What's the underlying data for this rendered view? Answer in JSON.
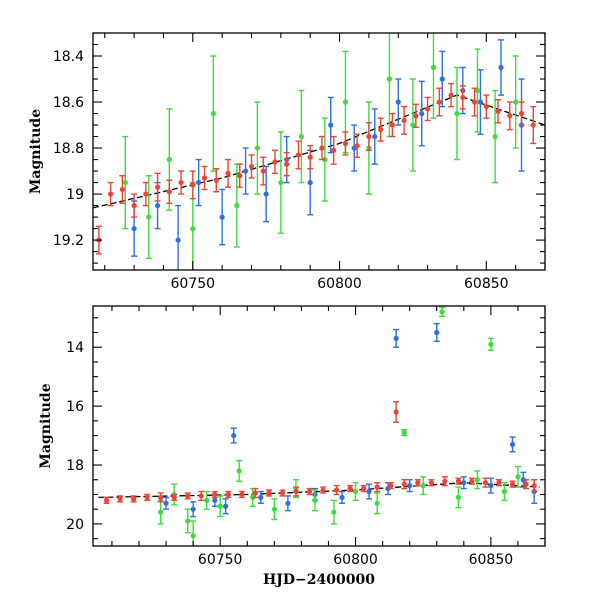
{
  "chart_data": [
    {
      "type": "scatter",
      "panel": "top",
      "title": "",
      "xlabel": "",
      "ylabel": "Magnitude",
      "xlim": [
        60716,
        60870
      ],
      "ylim": [
        19.33,
        18.3
      ],
      "y_inverted": true,
      "xticks": [
        60750,
        60800,
        60850
      ],
      "yticks": [
        18.4,
        18.6,
        18.8,
        19,
        19.2
      ],
      "ytick_labels": [
        "18.4",
        "18.6",
        "18.8",
        "19",
        "19.2"
      ],
      "grid": false,
      "legend": "none",
      "trend": {
        "x": [
          60716,
          60760,
          60800,
          60840,
          60870
        ],
        "y": [
          19.06,
          18.93,
          18.78,
          18.57,
          18.7
        ]
      },
      "series": [
        {
          "color": "#2f6fe4",
          "x": [
            60730,
            60738,
            60745,
            60752,
            60760,
            60768,
            60775,
            60782,
            60790,
            60797,
            60805,
            60812,
            60820,
            60828,
            60835,
            60842,
            60848,
            60855,
            60862
          ],
          "y": [
            19.15,
            19.05,
            19.2,
            18.95,
            19.1,
            18.9,
            19.0,
            18.85,
            18.95,
            18.7,
            18.8,
            18.75,
            18.6,
            18.65,
            18.5,
            18.55,
            18.6,
            18.45,
            18.7
          ],
          "err": [
            0.12,
            0.1,
            0.15,
            0.1,
            0.12,
            0.1,
            0.12,
            0.1,
            0.14,
            0.12,
            0.1,
            0.12,
            0.1,
            0.14,
            0.12,
            0.1,
            0.14,
            0.12,
            0.2
          ]
        },
        {
          "color": "#3cdd3c",
          "x": [
            60727,
            60735,
            60742,
            60750,
            60757,
            60765,
            60772,
            60780,
            60787,
            60795,
            60802,
            60810,
            60817,
            60825,
            60832,
            60840,
            60847,
            60853,
            60860
          ],
          "y": [
            18.95,
            19.1,
            18.85,
            19.15,
            18.65,
            19.05,
            18.8,
            18.95,
            18.75,
            18.85,
            18.6,
            18.8,
            18.5,
            18.7,
            18.45,
            18.65,
            18.55,
            18.75,
            18.6
          ],
          "err": [
            0.2,
            0.18,
            0.22,
            0.2,
            0.25,
            0.18,
            0.2,
            0.22,
            0.2,
            0.18,
            0.22,
            0.2,
            0.25,
            0.2,
            0.22,
            0.2,
            0.18,
            0.2,
            0.2
          ]
        },
        {
          "color": "#ee4433",
          "x": [
            60718,
            60722,
            60726,
            60730,
            60734,
            60738,
            60742,
            60746,
            60750,
            60754,
            60758,
            60762,
            60766,
            60770,
            60774,
            60778,
            60782,
            60786,
            60790,
            60794,
            60798,
            60802,
            60806,
            60810,
            60814,
            60818,
            60822,
            60826,
            60830,
            60834,
            60838,
            60842,
            60846,
            60850,
            60854,
            60858,
            60862,
            60866
          ],
          "y": [
            19.2,
            19.0,
            18.98,
            19.05,
            19.0,
            18.97,
            18.99,
            18.95,
            18.96,
            18.93,
            18.94,
            18.91,
            18.92,
            18.88,
            18.9,
            18.86,
            18.87,
            18.83,
            18.84,
            18.8,
            18.81,
            18.78,
            18.79,
            18.75,
            18.72,
            18.7,
            18.68,
            18.66,
            18.63,
            18.6,
            18.57,
            18.58,
            18.6,
            18.62,
            18.64,
            18.66,
            18.65,
            18.7
          ],
          "err": [
            0.06,
            0.05,
            0.06,
            0.05,
            0.05,
            0.06,
            0.05,
            0.05,
            0.06,
            0.05,
            0.05,
            0.06,
            0.05,
            0.05,
            0.06,
            0.05,
            0.05,
            0.06,
            0.05,
            0.05,
            0.06,
            0.05,
            0.05,
            0.06,
            0.05,
            0.05,
            0.06,
            0.05,
            0.05,
            0.06,
            0.05,
            0.05,
            0.06,
            0.05,
            0.05,
            0.06,
            0.05,
            0.08
          ]
        }
      ]
    },
    {
      "type": "scatter",
      "panel": "bottom",
      "title": "",
      "xlabel": "HJD−2400000",
      "ylabel": "Magnitude",
      "xlim": [
        60703,
        60870
      ],
      "ylim": [
        20.75,
        12.6
      ],
      "y_inverted": true,
      "xticks": [
        60750,
        60800,
        60850
      ],
      "yticks": [
        14,
        16,
        18,
        20
      ],
      "ytick_labels": [
        "14",
        "16",
        "18",
        "20"
      ],
      "grid": false,
      "legend": "none",
      "trend": {
        "x": [
          60705,
          60760,
          60800,
          60840,
          60868
        ],
        "y": [
          19.1,
          19.0,
          18.85,
          18.6,
          18.75
        ]
      },
      "series": [
        {
          "color": "#2f6fe4",
          "x": [
            60730,
            60740,
            60748,
            60752,
            60755,
            60765,
            60775,
            60785,
            60795,
            60805,
            60812,
            60815,
            60820,
            60830,
            60840,
            60850,
            60858,
            60862,
            60866
          ],
          "y": [
            19.3,
            19.5,
            19.2,
            19.4,
            17.0,
            19.1,
            19.3,
            19.0,
            19.1,
            18.9,
            18.8,
            13.7,
            18.7,
            13.5,
            18.6,
            18.7,
            17.3,
            18.5,
            18.9
          ],
          "err": [
            0.2,
            0.25,
            0.2,
            0.25,
            0.25,
            0.2,
            0.25,
            0.2,
            0.2,
            0.25,
            0.2,
            0.3,
            0.2,
            0.3,
            0.2,
            0.25,
            0.25,
            0.25,
            0.4
          ]
        },
        {
          "color": "#3cdd3c",
          "x": [
            60728,
            60733,
            60738,
            60740,
            60745,
            60750,
            60757,
            60762,
            60770,
            60778,
            60785,
            60792,
            60800,
            60808,
            60818,
            60825,
            60832,
            60838,
            60845,
            60850,
            60855,
            60860
          ],
          "y": [
            19.6,
            19.0,
            19.9,
            20.4,
            19.2,
            19.4,
            18.2,
            19.1,
            19.5,
            18.8,
            19.2,
            19.6,
            18.9,
            19.3,
            16.9,
            18.7,
            12.8,
            19.1,
            18.5,
            13.9,
            18.9,
            18.4
          ],
          "err": [
            0.4,
            0.35,
            0.4,
            0.5,
            0.3,
            0.35,
            0.35,
            0.3,
            0.35,
            0.3,
            0.35,
            0.4,
            0.3,
            0.35,
            0.1,
            0.3,
            0.15,
            0.35,
            0.3,
            0.2,
            0.3,
            0.35
          ]
        },
        {
          "color": "#ee4433",
          "x": [
            60708,
            60713,
            60718,
            60723,
            60728,
            60733,
            60738,
            60743,
            60748,
            60753,
            60758,
            60763,
            60768,
            60773,
            60778,
            60783,
            60788,
            60793,
            60798,
            60803,
            60808,
            60813,
            60815,
            60818,
            60823,
            60828,
            60833,
            60838,
            60843,
            60848,
            60853,
            60858,
            60863,
            60866
          ],
          "y": [
            19.2,
            19.15,
            19.15,
            19.1,
            19.1,
            19.1,
            19.05,
            19.05,
            19.0,
            19.0,
            19.0,
            18.95,
            18.95,
            18.95,
            18.9,
            18.9,
            18.85,
            18.85,
            18.8,
            18.8,
            18.75,
            18.7,
            16.2,
            18.65,
            18.6,
            18.6,
            18.55,
            18.55,
            18.55,
            18.6,
            18.6,
            18.65,
            18.65,
            18.7
          ],
          "err": [
            0.1,
            0.1,
            0.1,
            0.1,
            0.15,
            0.1,
            0.1,
            0.15,
            0.1,
            0.1,
            0.1,
            0.15,
            0.1,
            0.1,
            0.15,
            0.1,
            0.1,
            0.15,
            0.1,
            0.1,
            0.15,
            0.1,
            0.35,
            0.15,
            0.1,
            0.1,
            0.15,
            0.1,
            0.1,
            0.15,
            0.1,
            0.1,
            0.15,
            0.2
          ]
        }
      ]
    }
  ]
}
